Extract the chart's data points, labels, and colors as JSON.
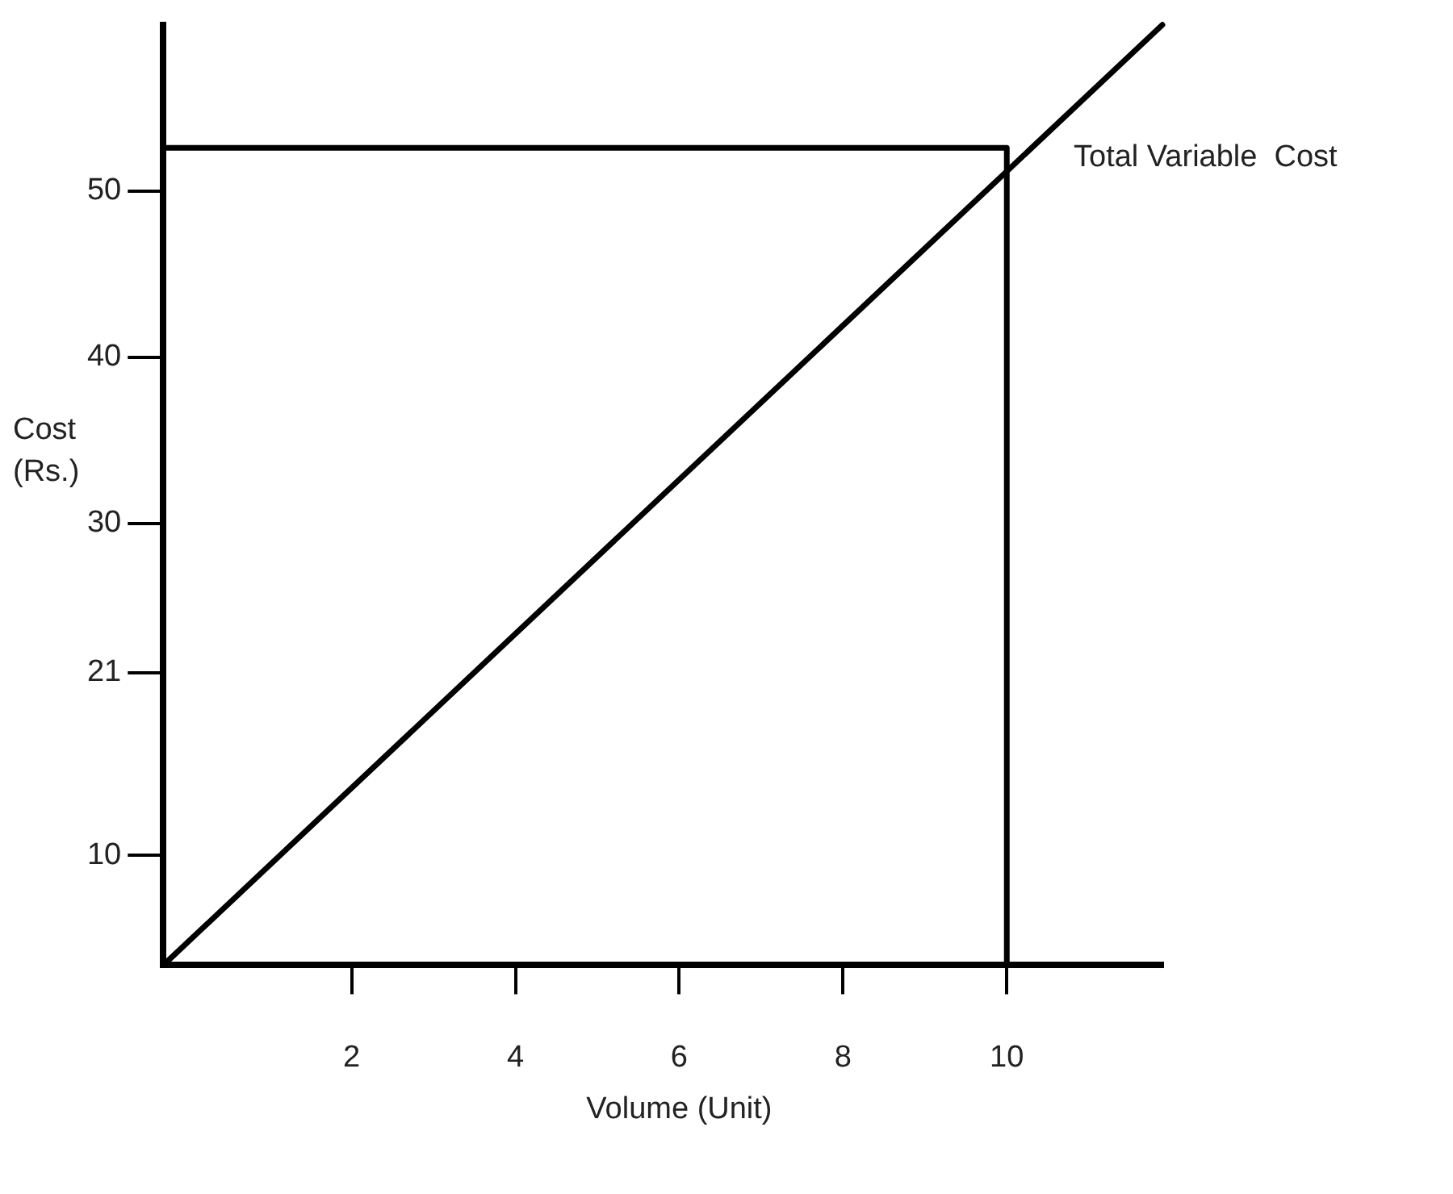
{
  "chart_data": {
    "type": "line",
    "xlabel": "Volume (Unit)",
    "ylabel": "Cost (Rs.)",
    "xlim": [
      -0.3,
      11.9
    ],
    "ylim": [
      3.4,
      60
    ],
    "xticks": [
      2,
      4,
      6,
      8,
      10
    ],
    "yticks": [
      10,
      21,
      30,
      40,
      50
    ],
    "grid": false,
    "legend": false,
    "marker": "none",
    "line_style": "solid",
    "series": [
      {
        "name": "Total Variable  Cost",
        "color": "#000000",
        "x": [
          -0.3,
          11.9
        ],
        "values": [
          3.4,
          60
        ]
      },
      {
        "color": "#000000",
        "x": [
          -0.3,
          10,
          10
        ],
        "values": [
          52.6,
          52.6,
          3.4
        ]
      }
    ]
  }
}
